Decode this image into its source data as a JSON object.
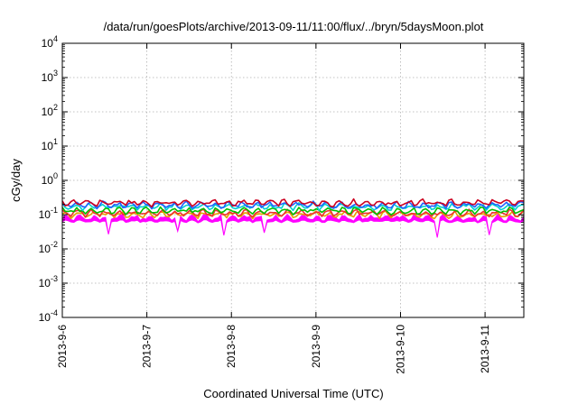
{
  "chart_data": {
    "type": "line",
    "title": "/data/run/goesPlots/archive/2013-09-11/11:00/flux/../bryn/5daysMoon.plot",
    "xlabel": "Coordinated Universal Time (UTC)",
    "ylabel": "cGy/day",
    "y_scale": "log",
    "ylim": [
      0.0001,
      10000
    ],
    "xlim": [
      "2013-09-06 00:00",
      "2013-09-11 11:00"
    ],
    "grid": true,
    "legend": "none",
    "x_ticks": [
      "2013-9-6",
      "2013-9-7",
      "2013-9-8",
      "2013-9-9",
      "2013-9-10",
      "2013-9-11"
    ],
    "y_ticks": [
      {
        "base": "10",
        "exp": "-4"
      },
      {
        "base": "10",
        "exp": "-3"
      },
      {
        "base": "10",
        "exp": "-2"
      },
      {
        "base": "10",
        "exp": "-1"
      },
      {
        "base": "10",
        "exp": "0"
      },
      {
        "base": "10",
        "exp": "1"
      },
      {
        "base": "10",
        "exp": "2"
      },
      {
        "base": "10",
        "exp": "3"
      },
      {
        "base": "10",
        "exp": "4"
      }
    ],
    "series": [
      {
        "color": "#ff00ff",
        "fill": true,
        "typical": 0.08,
        "min_dip": 0.02
      },
      {
        "color": "#e8a000",
        "typical": 0.1
      },
      {
        "color": "#ee3030",
        "typical": 0.11
      },
      {
        "color": "#00c000",
        "typical": 0.13
      },
      {
        "color": "#00d0d0",
        "typical": 0.17
      },
      {
        "color": "#2060ff",
        "typical": 0.19
      },
      {
        "color": "#cc0020",
        "typical": 0.22
      }
    ]
  }
}
